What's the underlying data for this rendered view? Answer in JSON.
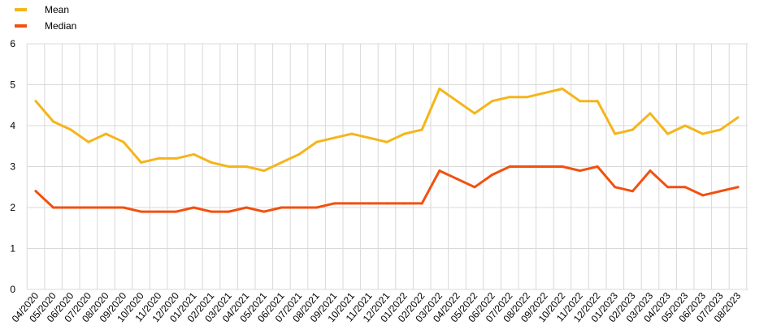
{
  "chart_data": {
    "type": "line",
    "title": "",
    "xlabel": "",
    "ylabel": "",
    "ylim": [
      0,
      6
    ],
    "yticks": [
      "0",
      "1",
      "2",
      "3",
      "4",
      "5",
      "6"
    ],
    "grid": true,
    "legend_position": "top-left",
    "categories": [
      "04/2020",
      "05/2020",
      "06/2020",
      "07/2020",
      "08/2020",
      "09/2020",
      "10/2020",
      "11/2020",
      "12/2020",
      "01/2021",
      "02/2021",
      "03/2021",
      "04/2021",
      "05/2021",
      "06/2021",
      "07/2021",
      "08/2021",
      "09/2021",
      "10/2021",
      "11/2021",
      "12/2021",
      "01/2022",
      "02/2022",
      "03/2022",
      "04/2022",
      "05/2022",
      "06/2022",
      "07/2022",
      "08/2022",
      "09/2022",
      "10/2022",
      "11/2022",
      "12/2022",
      "01/2023",
      "02/2023",
      "03/2023",
      "04/2023",
      "05/2023",
      "06/2023",
      "07/2023",
      "08/2023"
    ],
    "series": [
      {
        "name": "Mean",
        "color": "#F5B51A",
        "values": [
          4.6,
          4.1,
          3.9,
          3.6,
          3.8,
          3.6,
          3.1,
          3.2,
          3.2,
          3.3,
          3.1,
          3.0,
          3.0,
          2.9,
          3.1,
          3.3,
          3.6,
          3.7,
          3.8,
          3.7,
          3.6,
          3.8,
          3.9,
          4.9,
          4.6,
          4.3,
          4.6,
          4.7,
          4.7,
          4.8,
          4.9,
          4.6,
          4.6,
          3.8,
          3.9,
          4.3,
          3.8,
          4.0,
          3.8,
          3.9,
          4.2
        ]
      },
      {
        "name": "Median",
        "color": "#F2500F",
        "values": [
          2.4,
          2.0,
          2.0,
          2.0,
          2.0,
          2.0,
          1.9,
          1.9,
          1.9,
          2.0,
          1.9,
          1.9,
          2.0,
          1.9,
          2.0,
          2.0,
          2.0,
          2.1,
          2.1,
          2.1,
          2.1,
          2.1,
          2.1,
          2.9,
          2.7,
          2.5,
          2.8,
          3.0,
          3.0,
          3.0,
          3.0,
          2.9,
          3.0,
          2.5,
          2.4,
          2.9,
          2.5,
          2.5,
          2.3,
          2.4,
          2.5
        ]
      }
    ]
  }
}
